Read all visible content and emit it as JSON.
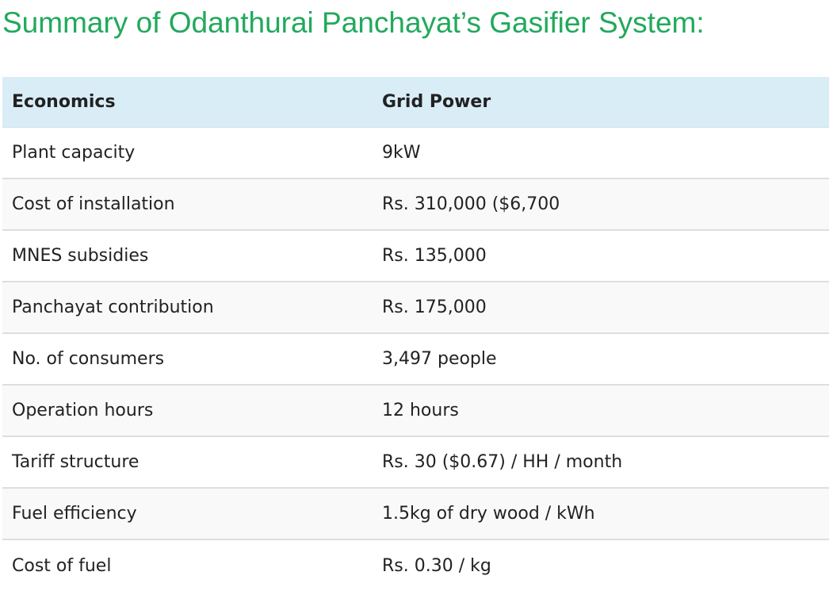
{
  "title": "Summary of Odanthurai Panchayat’s Gasifier System:",
  "table": {
    "headers": [
      "Economics",
      "Grid Power"
    ],
    "rows": [
      [
        "Plant capacity",
        "9kW"
      ],
      [
        "Cost of installation",
        "Rs. 310,000 ($6,700"
      ],
      [
        "MNES subsidies",
        "Rs. 135,000"
      ],
      [
        "Panchayat contribution",
        "Rs. 175,000"
      ],
      [
        "No. of consumers",
        "3,497 people"
      ],
      [
        "Operation hours",
        "12 hours"
      ],
      [
        "Tariff structure",
        "Rs. 30 ($0.67) / HH / month"
      ],
      [
        "Fuel efficiency",
        "1.5kg of dry wood / kWh"
      ],
      [
        "Cost of fuel",
        "Rs. 0.30 / kg"
      ]
    ]
  },
  "colors": {
    "title": "#22a95c",
    "header_bg": "#d9edf7",
    "row_alt_bg": "#f9f9f9",
    "row_border": "#dedede"
  }
}
